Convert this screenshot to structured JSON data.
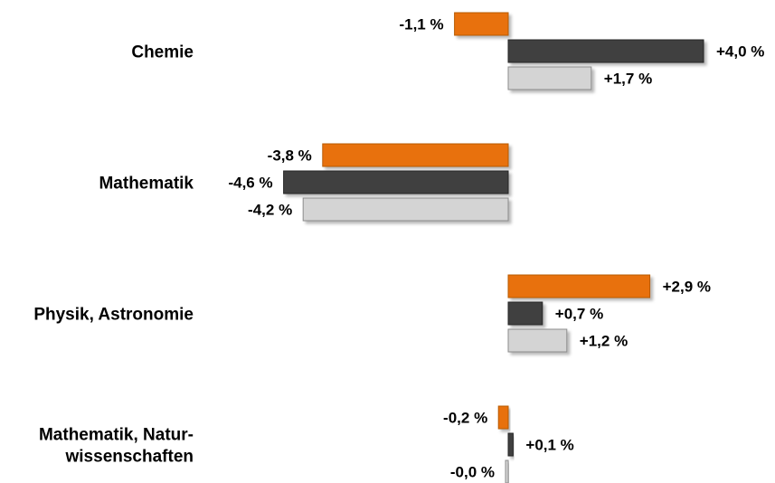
{
  "chart_data": {
    "type": "bar",
    "orientation": "horizontal",
    "categories": [
      [
        "Chemie"
      ],
      [
        "Mathematik"
      ],
      [
        "Physik, Astronomie"
      ],
      [
        "Mathematik, Natur-",
        "wissenschaften"
      ]
    ],
    "series": [
      {
        "values": [
          -1.1,
          -3.8,
          2.9,
          -0.2
        ],
        "labels": [
          "-1,1 %",
          "-3,8 %",
          "+2,9 %",
          "-0,2 %"
        ],
        "color": "#e8710a",
        "stroke": "#b85a06"
      },
      {
        "values": [
          4.0,
          -4.6,
          0.7,
          0.1
        ],
        "labels": [
          "+4,0 %",
          "-4,6 %",
          "+0,7 %",
          "+0,1 %"
        ],
        "color": "#404040",
        "stroke": "#262626"
      },
      {
        "values": [
          1.7,
          -4.2,
          1.2,
          0.0
        ],
        "labels": [
          "+1,7 %",
          "-4,2 %",
          "+1,2 %",
          "-0,0 %"
        ],
        "color": "#d4d4d4",
        "stroke": "#8c8c8c"
      }
    ],
    "xlim": [
      -5,
      5
    ],
    "grid": false,
    "legend": "none"
  }
}
